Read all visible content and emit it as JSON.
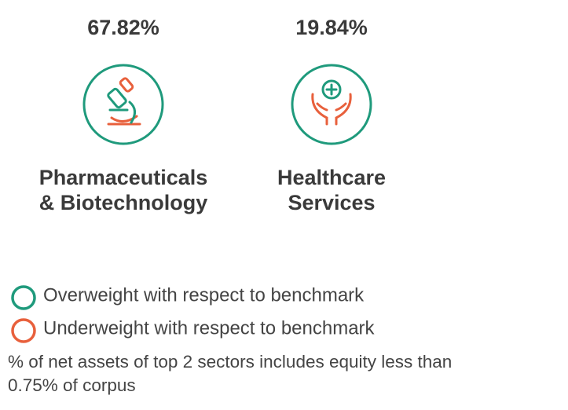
{
  "sectors": [
    {
      "value": "67.82%",
      "label_lines": [
        "Pharmaceuticals",
        "& Biotechnology"
      ],
      "status": "overweight"
    },
    {
      "value": "19.84%",
      "label_lines": [
        "Healthcare",
        "Services"
      ],
      "status": "overweight"
    }
  ],
  "legend": [
    {
      "label": "Overweight with respect to benchmark",
      "color": "#1f9a7c"
    },
    {
      "label": "Underweight with respect to benchmark",
      "color": "#e8603c"
    }
  ],
  "footnote_lines": [
    "% of net assets of top 2 sectors includes equity less than",
    "0.75% of corpus"
  ]
}
